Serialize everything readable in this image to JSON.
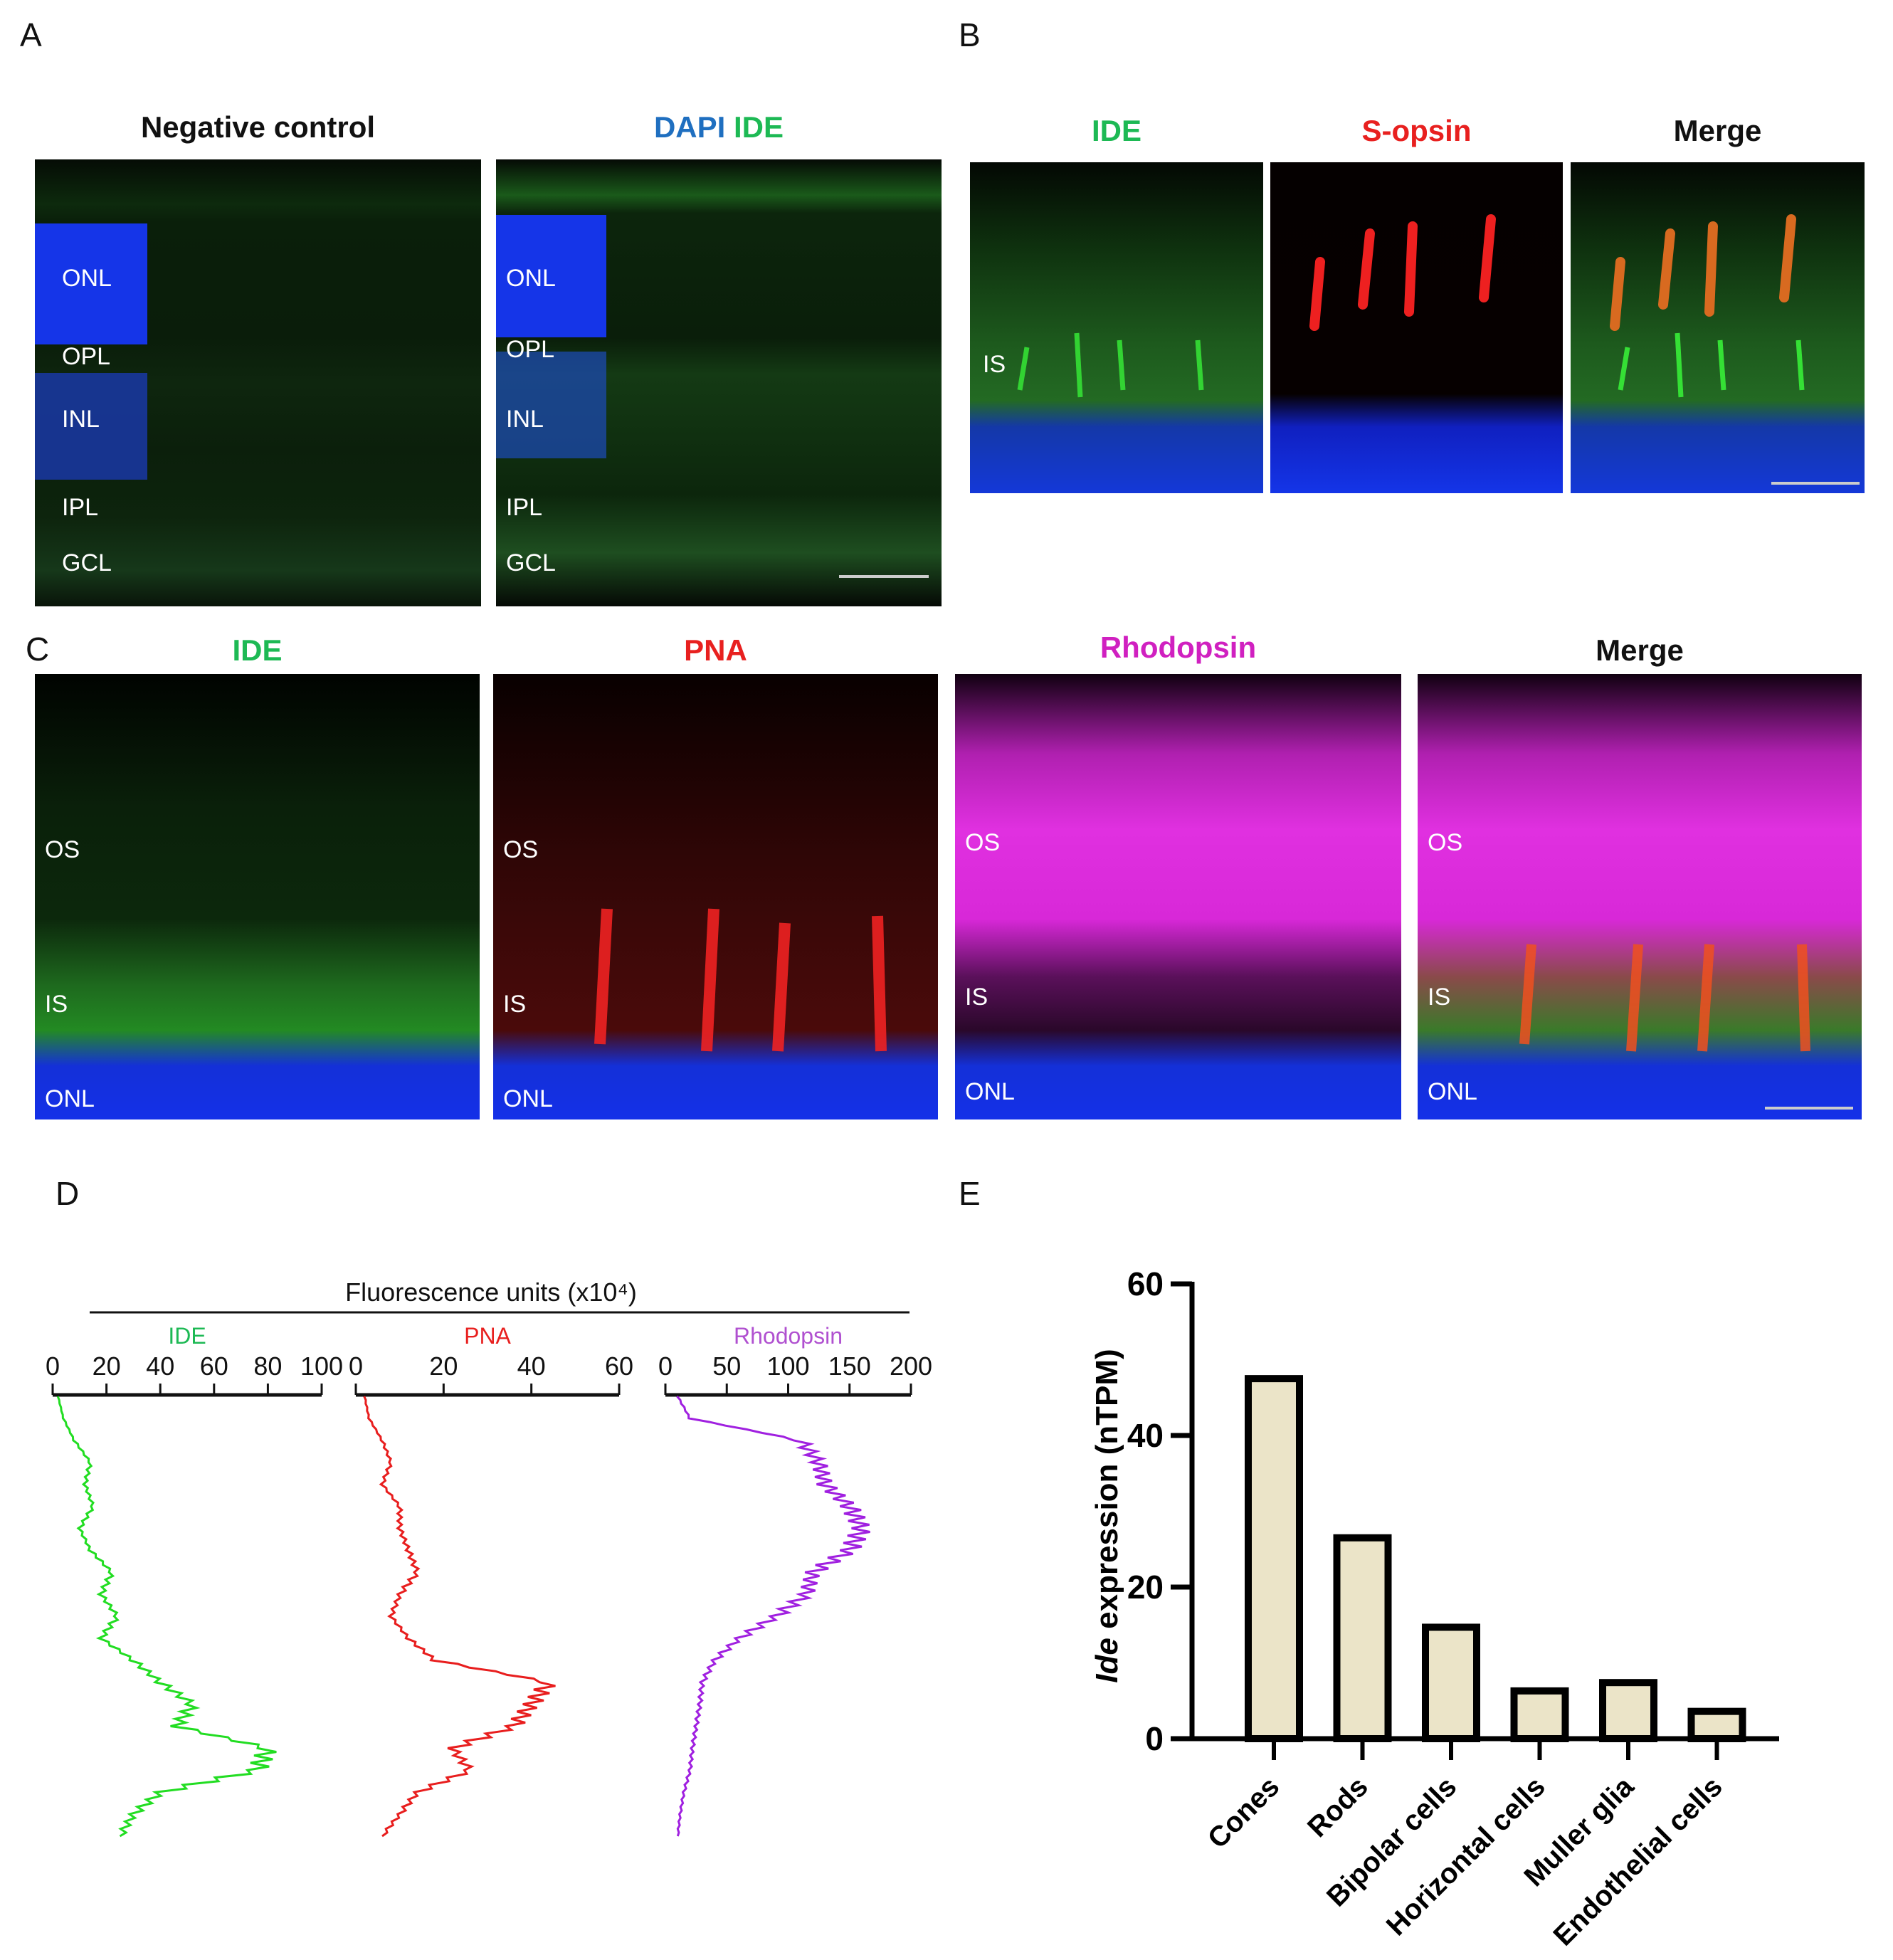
{
  "panels": {
    "A": {
      "letter": "A",
      "images": [
        {
          "title": "Negative control",
          "layers": [
            "ONL",
            "OPL",
            "INL",
            "IPL",
            "GCL"
          ]
        },
        {
          "title_parts": [
            {
              "text": "DAPI",
              "color": "#1F6FC0"
            },
            {
              "text": "IDE",
              "color": "#1DB954"
            }
          ],
          "layers": [
            "ONL",
            "OPL",
            "INL",
            "IPL",
            "GCL"
          ]
        }
      ]
    },
    "B": {
      "letter": "B",
      "images": [
        {
          "title": "IDE",
          "color": "#1DB954",
          "label": "IS"
        },
        {
          "title": "S-opsin",
          "color": "#E8201F"
        },
        {
          "title": "Merge",
          "color": "#111111"
        }
      ]
    },
    "C": {
      "letter": "C",
      "images": [
        {
          "title": "IDE",
          "color": "#1DB954",
          "labels": [
            "OS",
            "IS",
            "ONL"
          ]
        },
        {
          "title": "PNA",
          "color": "#E8201F",
          "labels": [
            "OS",
            "IS",
            "ONL"
          ]
        },
        {
          "title": "Rhodopsin",
          "color": "#D020C0",
          "labels": [
            "OS",
            "IS",
            "ONL"
          ]
        },
        {
          "title": "Merge",
          "color": "#111111",
          "labels": [
            "OS",
            "IS",
            "ONL"
          ]
        }
      ]
    },
    "D": {
      "letter": "D"
    },
    "E": {
      "letter": "E"
    }
  },
  "chart_data": [
    {
      "panel": "D",
      "type": "line",
      "title": "Fluorescence units (x10⁴)",
      "orientation": "vertical-profile",
      "series": [
        {
          "name": "IDE",
          "color": "#22DD22",
          "label_color": "#1DB954",
          "xlim": [
            0,
            100
          ],
          "ticks": [
            0,
            20,
            40,
            60,
            80,
            100
          ],
          "y_index": [
            0,
            5,
            10,
            15,
            20,
            25,
            30,
            35,
            40,
            45,
            50,
            55,
            60,
            65,
            70,
            75,
            80,
            85,
            90,
            95,
            100
          ],
          "values": [
            2,
            4,
            8,
            14,
            12,
            15,
            10,
            14,
            22,
            18,
            24,
            18,
            30,
            40,
            52,
            46,
            80,
            76,
            40,
            30,
            25
          ]
        },
        {
          "name": "PNA",
          "color": "#E81E1E",
          "label_color": "#E8201F",
          "xlim": [
            0,
            60
          ],
          "ticks": [
            0,
            20,
            40,
            60
          ],
          "y_index": [
            0,
            5,
            10,
            15,
            20,
            25,
            30,
            35,
            40,
            45,
            50,
            55,
            60,
            65,
            70,
            75,
            80,
            85,
            90,
            95,
            100
          ],
          "values": [
            2,
            3,
            6,
            8,
            6,
            10,
            10,
            12,
            14,
            10,
            8,
            12,
            18,
            44,
            40,
            36,
            22,
            26,
            14,
            10,
            6
          ]
        },
        {
          "name": "Rhodopsin",
          "color": "#A020E0",
          "label_color": "#B050D0",
          "xlim": [
            0,
            200
          ],
          "ticks": [
            0,
            50,
            100,
            150,
            200
          ],
          "y_index": [
            0,
            5,
            10,
            15,
            20,
            25,
            30,
            35,
            40,
            45,
            50,
            55,
            60,
            65,
            70,
            75,
            80,
            85,
            90,
            95,
            100
          ],
          "values": [
            10,
            20,
            110,
            125,
            130,
            150,
            160,
            150,
            120,
            115,
            90,
            60,
            40,
            30,
            28,
            25,
            22,
            20,
            15,
            12,
            10
          ]
        }
      ]
    },
    {
      "panel": "E",
      "type": "bar",
      "categories": [
        "Cones",
        "Rods",
        "Bipolar cells",
        "Horizontal cells",
        "Muller glia",
        "Endothelial cells"
      ],
      "values": [
        47.5,
        26.5,
        14.7,
        6.3,
        7.4,
        3.6
      ],
      "ylabel_italic": "Ide",
      "ylabel_rest": " expression (nTPM)",
      "ylim": [
        0,
        60
      ],
      "yticks": [
        0,
        20,
        40,
        60
      ],
      "bar_fill": "#EBE4C8",
      "bar_edge": "#000000"
    }
  ]
}
